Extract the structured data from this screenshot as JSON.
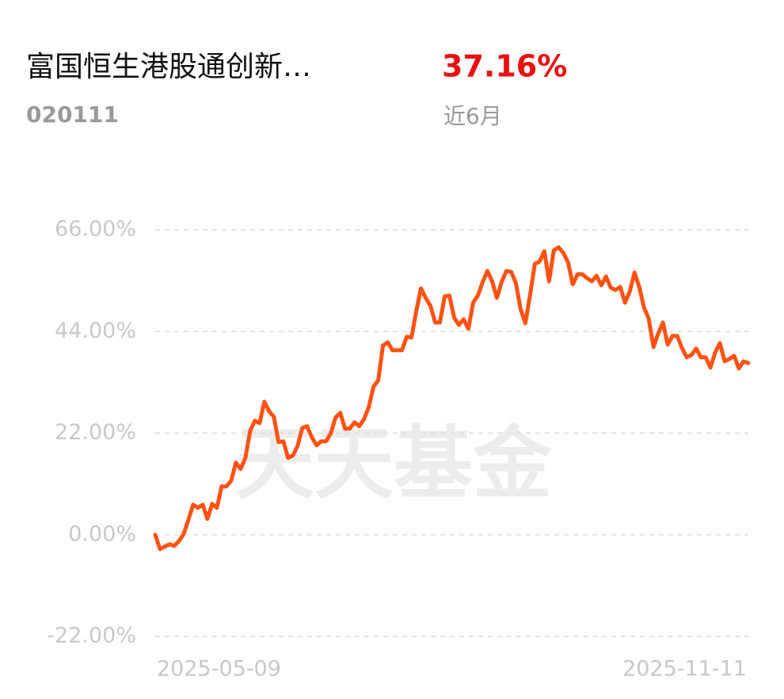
{
  "header": {
    "title": "富国恒生港股通创新…",
    "code": "020111",
    "return": "37.16%",
    "period": "近6月"
  },
  "watermark": "天天基金",
  "chart_data": {
    "type": "line",
    "categories": [
      "2025-05-09",
      null,
      null,
      null,
      null,
      null,
      null,
      null,
      null,
      null,
      null,
      null,
      null,
      null,
      null,
      null,
      null,
      null,
      null,
      null,
      null,
      null,
      null,
      null,
      null,
      null,
      null,
      null,
      null,
      null,
      null,
      null,
      null,
      null,
      null,
      null,
      null,
      null,
      null,
      null,
      null,
      null,
      null,
      null,
      null,
      null,
      null,
      null,
      null,
      null,
      null,
      null,
      null,
      null,
      null,
      null,
      null,
      null,
      null,
      null,
      null,
      null,
      null,
      null,
      null,
      null,
      null,
      null,
      null,
      null,
      null,
      null,
      null,
      null,
      null,
      null,
      null,
      null,
      null,
      null,
      null,
      null,
      null,
      null,
      null,
      null,
      null,
      null,
      null,
      null,
      null,
      null,
      null,
      null,
      null,
      null,
      null,
      null,
      null,
      null,
      null,
      null,
      null,
      null,
      null,
      null,
      null,
      null,
      null,
      null,
      null,
      null,
      null,
      null,
      null,
      null,
      null,
      null,
      null,
      null,
      null,
      null,
      null,
      null,
      null,
      "2025-11-11"
    ],
    "series": [
      {
        "color": "#ff5212",
        "values": [
          0,
          -3.09,
          -2.57,
          -2.06,
          -2.4,
          -1.37,
          0.17,
          3.26,
          6.51,
          5.83,
          6.51,
          3.43,
          6.69,
          5.83,
          10.46,
          10.46,
          11.66,
          15.6,
          14.23,
          16.63,
          22.46,
          24.69,
          24.17,
          28.8,
          26.74,
          25.54,
          20.06,
          20.23,
          16.63,
          17.14,
          19.2,
          23.14,
          23.49,
          21.09,
          19.37,
          20.23,
          20.23,
          21.94,
          25.37,
          26.4,
          22.97,
          22.97,
          24.34,
          23.49,
          25.03,
          27.6,
          32.06,
          33.43,
          40.97,
          41.66,
          39.94,
          39.94,
          39.94,
          42.86,
          42.69,
          48.34,
          53.32,
          51.26,
          49.55,
          45.95,
          45.95,
          51.6,
          51.77,
          46.97,
          45.43,
          46.63,
          44.57,
          50.23,
          51.77,
          54.69,
          57.09,
          54.86,
          51.26,
          54.69,
          57.09,
          56.92,
          54.52,
          48.86,
          45.77,
          51.95,
          58.63,
          59.15,
          61.38,
          54.86,
          61.55,
          62.23,
          61.03,
          58.98,
          54.17,
          56.4,
          56.4,
          55.55,
          54.86,
          56.06,
          54.0,
          55.89,
          53.49,
          52.97,
          53.66,
          50.23,
          52.63,
          56.75,
          53.66,
          49.2,
          46.8,
          40.63,
          43.55,
          45.95,
          41.15,
          43.03,
          43.03,
          40.46,
          38.4,
          38.92,
          40.29,
          38.4,
          38.4,
          36.17,
          39.43,
          41.49,
          37.54,
          38.06,
          38.74,
          36.0,
          37.54,
          37.16
        ]
      }
    ],
    "ylim": [
      -22,
      66
    ],
    "yticks": [
      {
        "value": -22,
        "label": "-22.00%"
      },
      {
        "value": 0,
        "label": "0.00%"
      },
      {
        "value": 22,
        "label": "22.00%"
      },
      {
        "value": 44,
        "label": "44.00%"
      },
      {
        "value": 66,
        "label": "66.00%"
      }
    ],
    "grid": true
  }
}
